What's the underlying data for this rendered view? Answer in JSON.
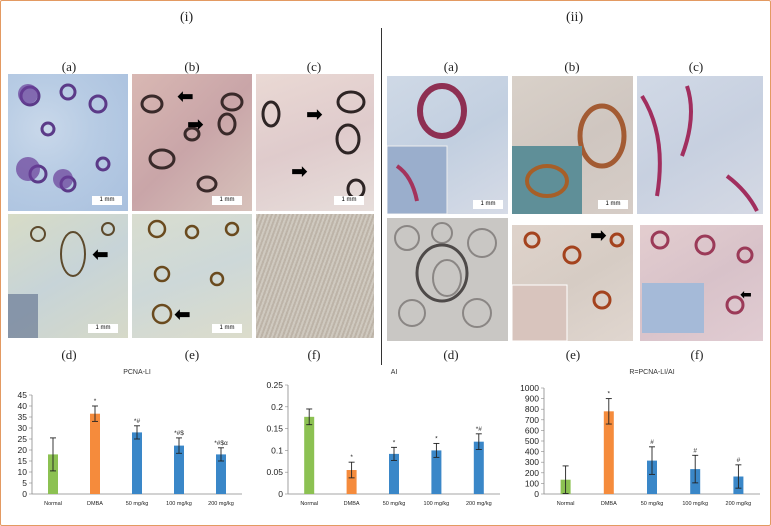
{
  "sections": {
    "left": "(i)",
    "right": "(ii)"
  },
  "panel_labels": {
    "top": [
      "(a)",
      "(b)",
      "(c)"
    ],
    "bottom": [
      "(d)",
      "(e)",
      "(f)"
    ]
  },
  "scale_bar": "1 mm",
  "arrow_icon": "arrow-icon",
  "chart_data": [
    {
      "type": "bar",
      "title": "PCNA-LI",
      "categories": [
        "Normal",
        "DMBA",
        "50 mg/kg",
        "100 mg/kg",
        "200 mg/kg"
      ],
      "values": [
        18,
        36.5,
        28,
        22,
        18
      ],
      "errors": [
        7.5,
        3.5,
        3,
        3.5,
        3
      ],
      "annotations": [
        "",
        "*",
        "*#",
        "*#$",
        "*#$α"
      ],
      "colors": [
        "#8cc152",
        "#f58b3c",
        "#3a87c8",
        "#3a87c8",
        "#3a87c8"
      ],
      "ylim": [
        0,
        45
      ],
      "yticks": [
        0,
        5,
        10,
        15,
        20,
        25,
        30,
        35,
        40,
        45
      ]
    },
    {
      "type": "bar",
      "title": "AI",
      "categories": [
        "Normal",
        "DMBA",
        "50 mg/kg",
        "100 mg/kg",
        "200 mg/kg"
      ],
      "values": [
        0.177,
        0.055,
        0.092,
        0.1,
        0.12
      ],
      "errors": [
        0.018,
        0.018,
        0.015,
        0.016,
        0.018
      ],
      "annotations": [
        "",
        "*",
        "*",
        "*",
        "*#"
      ],
      "colors": [
        "#8cc152",
        "#f58b3c",
        "#3a87c8",
        "#3a87c8",
        "#3a87c8"
      ],
      "ylim": [
        0,
        0.25
      ],
      "yticks": [
        0,
        0.05,
        0.1,
        0.15,
        0.2,
        0.25
      ]
    },
    {
      "type": "bar",
      "title": "R=PCNA-LI/AI",
      "categories": [
        "Normal",
        "DMBA",
        "50 mg/kg",
        "100 mg/kg",
        "200 mg/kg"
      ],
      "values": [
        135,
        780,
        315,
        235,
        165
      ],
      "errors": [
        130,
        120,
        130,
        130,
        110
      ],
      "annotations": [
        "",
        "*",
        "#",
        "#",
        "#"
      ],
      "colors": [
        "#8cc152",
        "#f58b3c",
        "#3a87c8",
        "#3a87c8",
        "#3a87c8"
      ],
      "ylim": [
        0,
        1000
      ],
      "yticks": [
        0,
        100,
        200,
        300,
        400,
        500,
        600,
        700,
        800,
        900,
        1000
      ]
    }
  ]
}
